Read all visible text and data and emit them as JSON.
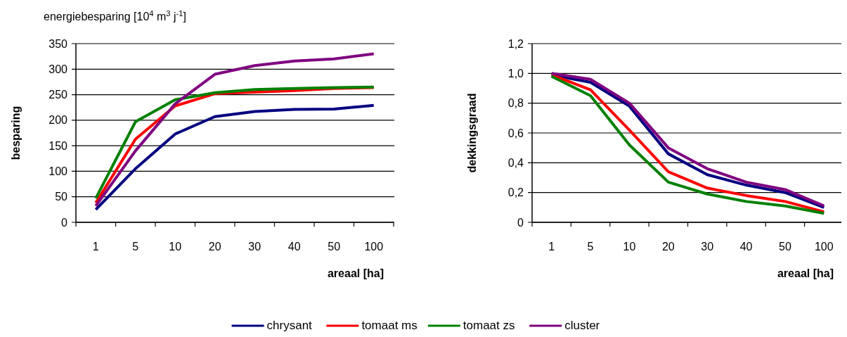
{
  "chart_data": [
    {
      "type": "line",
      "title": "energiebesparing [10$^{4}$ m$^{3}$ j$^{-1}$]",
      "xlabel": "areaal [ha]",
      "ylabel": "besparing",
      "categories": [
        "1",
        "5",
        "10",
        "20",
        "30",
        "40",
        "50",
        "100"
      ],
      "ylim": [
        0,
        350
      ],
      "yticks": [
        0,
        50,
        100,
        150,
        200,
        250,
        300,
        350
      ],
      "grid": "y",
      "legend": "bottom",
      "series": [
        {
          "name": "chrysant",
          "color": "#000080",
          "values": [
            25,
            105,
            173,
            207,
            217,
            221,
            222,
            229
          ]
        },
        {
          "name": "tomaat ms",
          "color": "#ff0000",
          "values": [
            38,
            163,
            228,
            252,
            255,
            258,
            262,
            264
          ]
        },
        {
          "name": "tomaat zs",
          "color": "#008000",
          "values": [
            47,
            197,
            240,
            254,
            260,
            262,
            264,
            265
          ]
        },
        {
          "name": "cluster",
          "color": "#800080",
          "values": [
            32,
            140,
            232,
            290,
            307,
            316,
            320,
            330
          ]
        }
      ]
    },
    {
      "type": "line",
      "xlabel": "areaal [ha]",
      "ylabel": "dekkingsgraad",
      "categories": [
        "1",
        "5",
        "10",
        "20",
        "30",
        "40",
        "50",
        "100"
      ],
      "ylim": [
        0,
        1.2
      ],
      "yticks": [
        0,
        {
          "value": 0.2,
          "label": "0,2"
        },
        {
          "value": 0.4,
          "label": "0,4"
        },
        {
          "value": 0.6,
          "label": "0,6"
        },
        {
          "value": 0.8,
          "label": "0,8"
        },
        {
          "value": 1.0,
          "label": "1,0"
        },
        {
          "value": 1.2,
          "label": "1,2"
        }
      ],
      "grid": "y",
      "series": [
        {
          "color": "#000080",
          "values": [
            0.99,
            0.94,
            0.78,
            0.46,
            0.32,
            0.25,
            0.2,
            0.1
          ]
        },
        {
          "color": "#ff0000",
          "values": [
            0.99,
            0.89,
            0.62,
            0.34,
            0.23,
            0.18,
            0.14,
            0.07
          ]
        },
        {
          "color": "#008000",
          "values": [
            0.98,
            0.85,
            0.52,
            0.27,
            0.19,
            0.14,
            0.11,
            0.06
          ]
        },
        {
          "color": "#800080",
          "values": [
            1.0,
            0.96,
            0.8,
            0.5,
            0.36,
            0.27,
            0.22,
            0.11
          ]
        }
      ]
    }
  ]
}
